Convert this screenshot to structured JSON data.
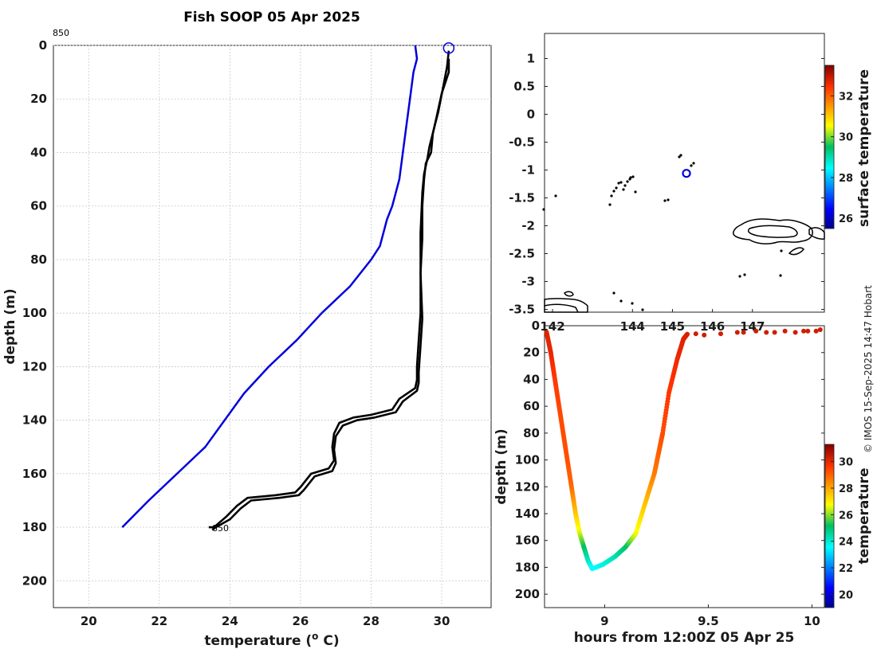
{
  "title": "Fish SOOP 05 Apr 2025",
  "credit": "© IMOS 15-Sep-2025 14:47 Hobart",
  "chart_data": [
    {
      "type": "line",
      "panel": "profile",
      "xlabel": "temperature (o C)",
      "xlabel_main": "temperature (",
      "xlabel_sup": "o",
      "xlabel_end": " C)",
      "ylabel": "depth (m)",
      "xlim": [
        19,
        31.4
      ],
      "ylim": [
        210,
        0
      ],
      "xticks": [
        "20",
        "22",
        "24",
        "26",
        "28",
        "30"
      ],
      "yticks": [
        "0",
        "20",
        "40",
        "60",
        "80",
        "100",
        "120",
        "140",
        "160",
        "180",
        "200"
      ],
      "grid": true,
      "top_label": "850",
      "end_label": "850",
      "series": [
        {
          "color": "#0000dd",
          "x": [
            29.25,
            29.3,
            29.2,
            29.1,
            29.0,
            28.9,
            28.8,
            28.6,
            28.45,
            28.25,
            28.0,
            27.4,
            26.6,
            25.9,
            25.1,
            24.4,
            23.3,
            22.5,
            21.7,
            20.95
          ],
          "y": [
            0,
            5,
            10,
            20,
            30,
            40,
            50,
            60,
            65,
            75,
            80,
            90,
            100,
            110,
            120,
            130,
            150,
            160,
            170,
            180
          ]
        },
        {
          "color": "#000000",
          "x": [
            30.2,
            30.15,
            30.05,
            29.9,
            29.8,
            29.65,
            29.6,
            29.5,
            29.45,
            29.4,
            29.4,
            29.4,
            29.35,
            29.3,
            29.3,
            29.25,
            28.8,
            28.6,
            28.0,
            27.5,
            27.1,
            26.95,
            26.9,
            26.95,
            26.8,
            26.3,
            26.0,
            25.85,
            25.3,
            24.5,
            24.2,
            23.9,
            23.55,
            23.4
          ],
          "y": [
            2,
            8,
            15,
            25,
            30,
            38,
            42,
            48,
            55,
            70,
            83,
            100,
            110,
            120,
            125,
            128,
            132,
            136,
            138,
            139,
            141,
            145,
            150,
            155,
            158,
            160,
            165,
            167,
            168,
            169,
            172,
            176,
            180,
            180
          ]
        },
        {
          "color": "#000000",
          "x": [
            30.2,
            30.2,
            30.0,
            29.85,
            29.75,
            29.7,
            29.55,
            29.5,
            29.45,
            29.45,
            29.4,
            29.45,
            29.4,
            29.35,
            29.35,
            29.3,
            28.9,
            28.7,
            28.1,
            27.6,
            27.2,
            27.0,
            26.95,
            27.0,
            26.9,
            26.4,
            26.1,
            25.95,
            25.4,
            24.6,
            24.3,
            24.0,
            23.6,
            23.5
          ],
          "y": [
            5,
            10,
            18,
            27,
            33,
            40,
            44,
            50,
            60,
            72,
            85,
            102,
            112,
            122,
            126,
            129,
            133,
            137,
            139,
            140,
            142,
            146,
            151,
            156,
            159,
            161,
            166,
            168,
            169,
            170,
            173,
            177,
            180,
            181
          ]
        }
      ],
      "markers": [
        {
          "x": 30.2,
          "y": 1,
          "shape": "circle",
          "color": "#0000dd"
        }
      ]
    },
    {
      "type": "scatter",
      "panel": "map",
      "colorbar_label": "surface temperature",
      "xlim": [
        141.8,
        148.8
      ],
      "ylim": [
        -3.55,
        1.45
      ],
      "xticks": [
        "142",
        "144",
        "145",
        "146",
        "147"
      ],
      "yticks": [
        "1",
        "0.5",
        "0",
        "-0.5",
        "-1",
        "-1.5",
        "-2",
        "-2.5",
        "-3",
        "-3.5"
      ],
      "clim": [
        25.5,
        33.5
      ],
      "cticks": [
        "26",
        "28",
        "30",
        "32"
      ],
      "marker": {
        "lon": 145.35,
        "lat": -1.06,
        "shape": "circle",
        "color": "#0000dd"
      }
    },
    {
      "type": "scatter",
      "panel": "time-depth",
      "xlabel": "hours from 12:00Z 05 Apr 25",
      "ylabel": "depth (m)",
      "colorbar_label": "temperature",
      "xlim": [
        8.71,
        10.06
      ],
      "ylim": [
        210,
        0
      ],
      "xticks": [
        "9",
        "9.5",
        "10"
      ],
      "yticks": [
        "0",
        "20",
        "40",
        "60",
        "80",
        "100",
        "120",
        "140",
        "160",
        "180",
        "200"
      ],
      "clim": [
        19,
        31.3
      ],
      "cticks": [
        "20",
        "22",
        "24",
        "26",
        "28",
        "30"
      ],
      "descent": [
        [
          8.72,
          5,
          30.1
        ],
        [
          8.74,
          20,
          30.0
        ],
        [
          8.76,
          40,
          29.6
        ],
        [
          8.78,
          60,
          29.4
        ],
        [
          8.8,
          80,
          29.3
        ],
        [
          8.82,
          100,
          29.25
        ],
        [
          8.84,
          120,
          28.9
        ],
        [
          8.86,
          140,
          27.6
        ],
        [
          8.88,
          155,
          26.5
        ],
        [
          8.9,
          165,
          25.2
        ],
        [
          8.92,
          175,
          24.2
        ],
        [
          8.94,
          181,
          23.5
        ]
      ],
      "ascent": [
        [
          8.94,
          181,
          23.5
        ],
        [
          8.99,
          178,
          23.8
        ],
        [
          9.05,
          172,
          24.3
        ],
        [
          9.1,
          165,
          25.0
        ],
        [
          9.15,
          155,
          26.6
        ],
        [
          9.2,
          130,
          27.7
        ],
        [
          9.24,
          110,
          28.6
        ],
        [
          9.26,
          95,
          29.0
        ],
        [
          9.28,
          80,
          29.3
        ],
        [
          9.31,
          50,
          29.6
        ],
        [
          9.35,
          25,
          29.9
        ],
        [
          9.38,
          10,
          30.1
        ],
        [
          9.4,
          6,
          30.2
        ]
      ],
      "surface": [
        [
          9.44,
          6,
          30.3
        ],
        [
          9.48,
          7,
          30.3
        ],
        [
          9.56,
          6,
          30.3
        ],
        [
          9.64,
          5,
          30.3
        ],
        [
          9.67,
          5,
          30.3
        ],
        [
          9.73,
          4,
          30.3
        ],
        [
          9.78,
          5,
          30.3
        ],
        [
          9.82,
          5,
          30.3
        ],
        [
          9.87,
          4,
          30.3
        ],
        [
          9.92,
          5,
          30.3
        ],
        [
          9.96,
          4,
          30.3
        ],
        [
          9.98,
          4,
          30.3
        ],
        [
          10.02,
          4,
          30.3
        ],
        [
          10.04,
          3,
          30.3
        ]
      ]
    }
  ]
}
